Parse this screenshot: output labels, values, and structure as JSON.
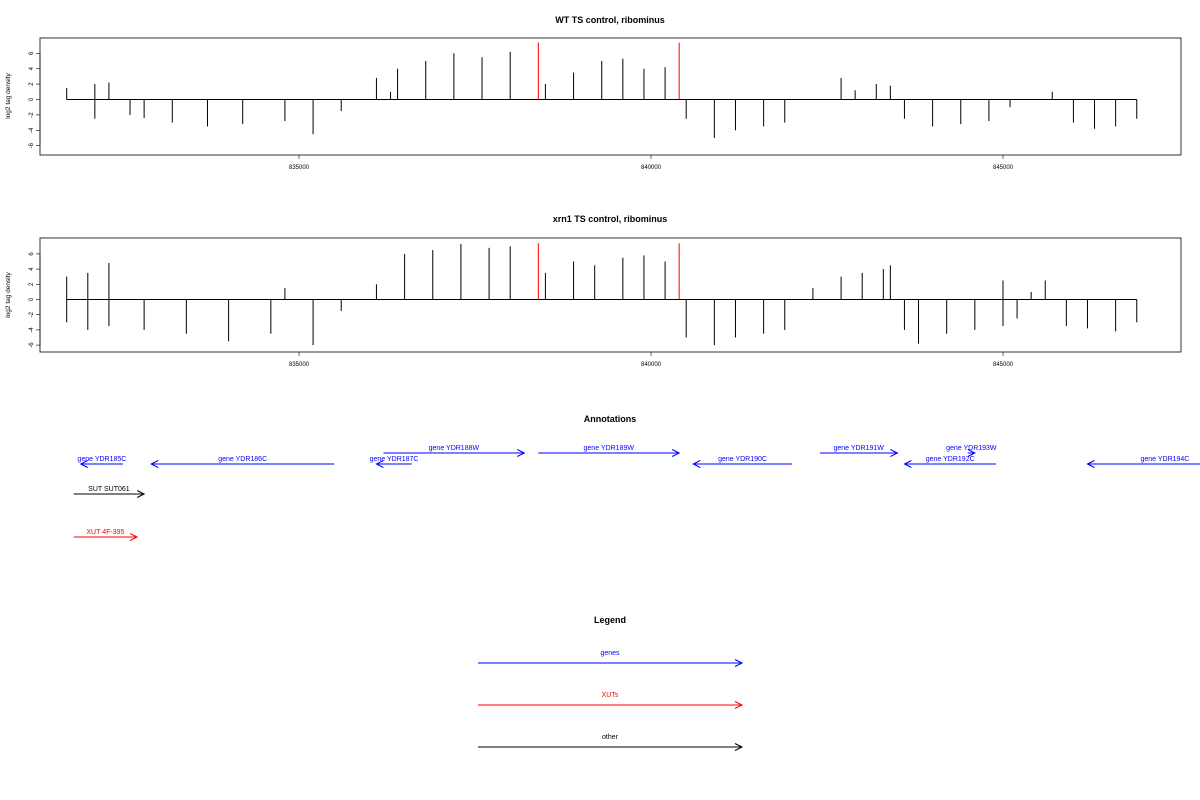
{
  "colors": {
    "genes": "#0000ff",
    "xuts": "#ff0000",
    "other": "#000000",
    "marker": "#ff0000",
    "bars": "#000000"
  },
  "chart_data": [
    {
      "type": "bar",
      "title": "WT TS control, ribominus",
      "ylabel": "log2 tag density",
      "xlim": [
        831500,
        847500
      ],
      "ylim": [
        -6.5,
        7.5
      ],
      "yticks": [
        -6,
        -4,
        -2,
        0,
        2,
        4,
        6
      ],
      "xticks": [
        835000,
        840000,
        845000
      ],
      "markers": [
        838400,
        840400
      ],
      "series": [
        {
          "x": [
            831700,
            832100,
            832300
          ],
          "values": [
            1.5,
            2.0,
            2.2
          ]
        },
        {
          "x": [
            832100,
            832600,
            832800,
            833200,
            833700,
            834200,
            834800,
            835200,
            835600
          ],
          "values": [
            -2.5,
            -2.0,
            -2.4,
            -3.0,
            -3.5,
            -3.2,
            -2.8,
            -4.5,
            -1.5
          ]
        },
        {
          "x": [
            836100,
            836300
          ],
          "values": [
            2.8,
            1.0
          ]
        },
        {
          "x": [
            836400,
            836800,
            837200,
            837600,
            838000
          ],
          "values": [
            4.0,
            5.0,
            6.0,
            5.5,
            6.2
          ]
        },
        {
          "x": [
            838500,
            838900,
            839300,
            839600,
            839900,
            840200
          ],
          "values": [
            2.0,
            3.5,
            5.0,
            5.3,
            4.0,
            4.2
          ]
        },
        {
          "x": [
            840500,
            840900,
            841200,
            841600,
            841900
          ],
          "values": [
            -2.5,
            -5.0,
            -4.0,
            -3.5,
            -3.0
          ]
        },
        {
          "x": [
            842700,
            842900,
            843200,
            843400
          ],
          "values": [
            2.8,
            1.2,
            2.0,
            1.8
          ]
        },
        {
          "x": [
            843600,
            844000,
            844400,
            844800,
            845100
          ],
          "values": [
            -2.5,
            -3.5,
            -3.2,
            -2.8,
            -1.0
          ]
        },
        {
          "x": [
            845700
          ],
          "values": [
            1.0
          ]
        },
        {
          "x": [
            846000,
            846300,
            846600,
            846900
          ],
          "values": [
            -3.0,
            -3.8,
            -3.5,
            -2.5
          ]
        }
      ]
    },
    {
      "type": "bar",
      "title": "xrn1 TS control, ribominus",
      "ylabel": "log2 tag density",
      "xlim": [
        831500,
        847500
      ],
      "ylim": [
        -6.5,
        7.5
      ],
      "yticks": [
        -6,
        -4,
        -2,
        0,
        2,
        4,
        6
      ],
      "xticks": [
        835000,
        840000,
        845000
      ],
      "markers": [
        838400,
        840400
      ],
      "series": [
        {
          "x": [
            831700,
            832000,
            832300
          ],
          "values": [
            3.0,
            3.5,
            4.8
          ]
        },
        {
          "x": [
            831700,
            832000,
            832300,
            832800,
            833400,
            834000,
            834600,
            835200,
            835600
          ],
          "values": [
            -3.0,
            -4.0,
            -3.5,
            -4.0,
            -4.5,
            -5.5,
            -4.5,
            -6.0,
            -1.5
          ]
        },
        {
          "x": [
            834800
          ],
          "values": [
            1.5
          ]
        },
        {
          "x": [
            836100,
            836500,
            836900,
            837300,
            837700,
            838000
          ],
          "values": [
            2.0,
            6.0,
            6.5,
            7.3,
            6.8,
            7.0
          ]
        },
        {
          "x": [
            838500,
            838900,
            839200,
            839600,
            839900,
            840200
          ],
          "values": [
            3.5,
            5.0,
            4.5,
            5.5,
            5.8,
            5.0
          ]
        },
        {
          "x": [
            840500,
            840900,
            841200,
            841600,
            841900
          ],
          "values": [
            -5.0,
            -6.0,
            -5.0,
            -4.5,
            -4.0
          ]
        },
        {
          "x": [
            842300,
            842700,
            843000,
            843300,
            843400
          ],
          "values": [
            1.5,
            3.0,
            3.5,
            4.0,
            4.5
          ]
        },
        {
          "x": [
            843600,
            843800,
            844200,
            844600,
            845000,
            845200
          ],
          "values": [
            -4.0,
            -5.8,
            -4.5,
            -4.0,
            -3.5,
            -2.5
          ]
        },
        {
          "x": [
            845000,
            845400,
            845600
          ],
          "values": [
            2.5,
            1.0,
            2.5
          ]
        },
        {
          "x": [
            845900,
            846200,
            846600,
            846900
          ],
          "values": [
            -3.5,
            -3.8,
            -4.2,
            -3.0
          ]
        }
      ]
    }
  ],
  "annotations": {
    "title": "Annotations",
    "items": [
      {
        "label": "gene YDR185C",
        "type": "gene",
        "x_start": 831900,
        "x_end": 832500,
        "strand": "-",
        "row": 1
      },
      {
        "label": "gene YDR186C",
        "type": "gene",
        "x_start": 832900,
        "x_end": 835500,
        "strand": "-",
        "row": 1
      },
      {
        "label": "gene YDR187C",
        "type": "gene",
        "x_start": 836100,
        "x_end": 836600,
        "strand": "-",
        "row": 1
      },
      {
        "label": "gene YDR188W",
        "type": "gene",
        "x_start": 836200,
        "x_end": 838200,
        "strand": "+",
        "row": 0
      },
      {
        "label": "gene YDR189W",
        "type": "gene",
        "x_start": 838400,
        "x_end": 840400,
        "strand": "+",
        "row": 0
      },
      {
        "label": "gene YDR190C",
        "type": "gene",
        "x_start": 840600,
        "x_end": 842000,
        "strand": "-",
        "row": 1
      },
      {
        "label": "gene YDR191W",
        "type": "gene",
        "x_start": 842400,
        "x_end": 843500,
        "strand": "+",
        "row": 0
      },
      {
        "label": "gene YDR192C",
        "type": "gene",
        "x_start": 843600,
        "x_end": 844900,
        "strand": "-",
        "row": 1
      },
      {
        "label": "gene YDR193W",
        "type": "gene",
        "x_start": 844500,
        "x_end": 844600,
        "strand": "+",
        "row": 0
      },
      {
        "label": "gene YDR194C",
        "type": "gene",
        "x_start": 846200,
        "x_end": 848400,
        "strand": "-",
        "row": 1
      },
      {
        "label": "SUT SUT061",
        "type": "other",
        "x_start": 831800,
        "x_end": 832800,
        "strand": "+",
        "row": 2
      },
      {
        "label": "XUT 4F-395",
        "type": "xut",
        "x_start": 831800,
        "x_end": 832700,
        "strand": "+",
        "row": 3
      }
    ]
  },
  "legend": {
    "title": "Legend",
    "items": [
      {
        "label": "genes",
        "type": "gene"
      },
      {
        "label": "XUTs",
        "type": "xut"
      },
      {
        "label": "other",
        "type": "other"
      }
    ]
  }
}
